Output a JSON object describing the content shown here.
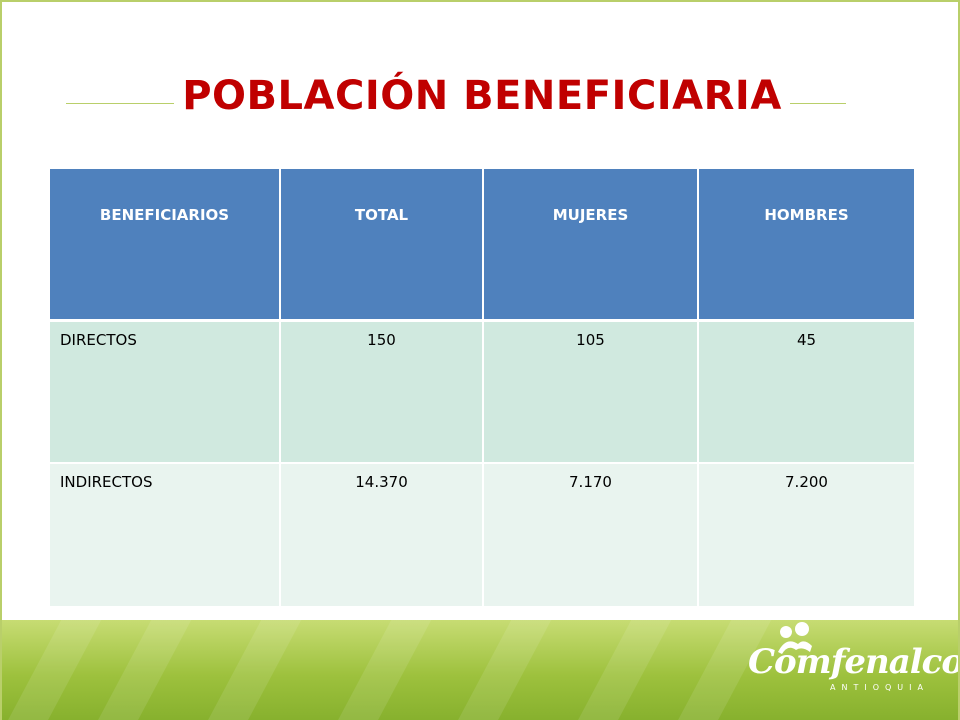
{
  "slide": {
    "title": "POBLACIÓN BENEFICIARIA"
  },
  "table": {
    "headers": [
      "BENEFICIARIOS",
      "TOTAL",
      "MUJERES",
      "HOMBRES"
    ],
    "rows": [
      [
        "DIRECTOS",
        "150",
        "105",
        "45"
      ],
      [
        "INDIRECTOS",
        "14.370",
        "7.170",
        "7.200"
      ]
    ]
  },
  "footer": {
    "logo_text": "Comfenalco",
    "logo_subtext": "ANTIOQUIA"
  },
  "colors": {
    "title": "#c00000",
    "header_bg": "#4f81bd",
    "row1_bg": "#d0e9df",
    "row2_bg": "#e9f4ef",
    "accent_green": "#9dc13d"
  }
}
